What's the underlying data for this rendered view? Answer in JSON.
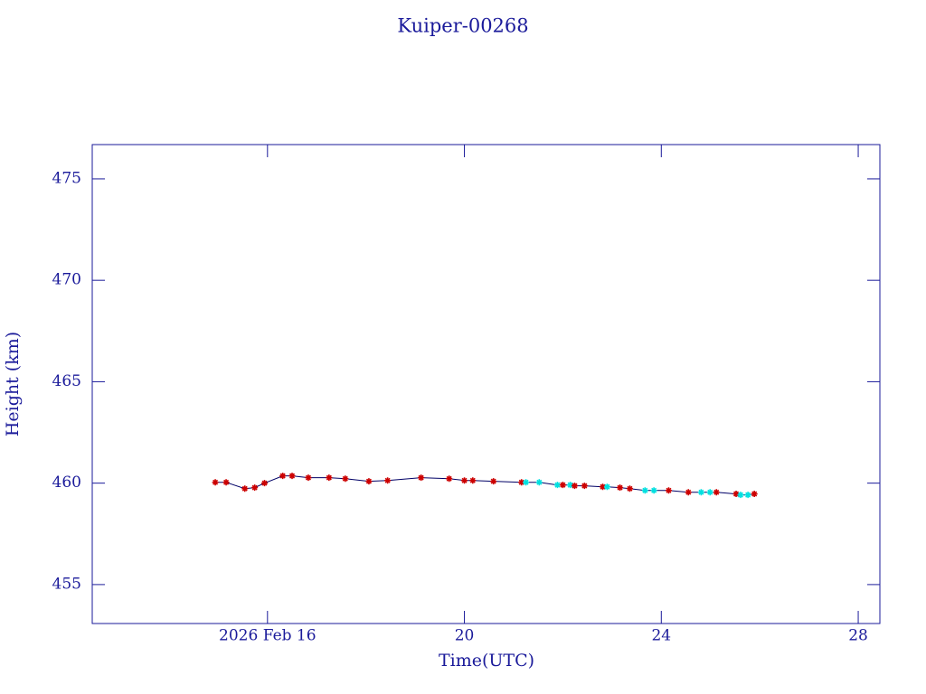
{
  "chart_data": {
    "type": "line",
    "title": "Kuiper-00268",
    "xlabel": "Time(UTC)",
    "ylabel": "Height (km)",
    "x": [
      14.94,
      15.16,
      15.54,
      15.74,
      15.94,
      16.31,
      16.5,
      16.83,
      17.25,
      17.58,
      18.06,
      18.44,
      19.12,
      19.69,
      20.0,
      20.17,
      20.59,
      21.16,
      21.25,
      21.52,
      21.89,
      22.0,
      22.15,
      22.24,
      22.44,
      22.81,
      22.9,
      23.16,
      23.36,
      23.67,
      23.85,
      24.15,
      24.55,
      24.81,
      24.99,
      25.12,
      25.52,
      25.61,
      25.76,
      25.89
    ],
    "values": [
      460.04,
      460.04,
      459.73,
      459.78,
      460.0,
      460.36,
      460.36,
      460.27,
      460.27,
      460.22,
      460.09,
      460.13,
      460.27,
      460.22,
      460.13,
      460.13,
      460.09,
      460.04,
      460.04,
      460.04,
      459.91,
      459.91,
      459.91,
      459.87,
      459.87,
      459.82,
      459.82,
      459.78,
      459.73,
      459.64,
      459.64,
      459.64,
      459.55,
      459.55,
      459.55,
      459.55,
      459.47,
      459.42,
      459.42,
      459.47
    ],
    "point_colors": [
      "#cc0000",
      "#cc0000",
      "#cc0000",
      "#cc0000",
      "#cc0000",
      "#cc0000",
      "#cc0000",
      "#cc0000",
      "#cc0000",
      "#cc0000",
      "#cc0000",
      "#cc0000",
      "#cc0000",
      "#cc0000",
      "#cc0000",
      "#cc0000",
      "#cc0000",
      "#cc0000",
      "#00e0e0",
      "#00e0e0",
      "#00e0e0",
      "#cc0000",
      "#00e0e0",
      "#cc0000",
      "#cc0000",
      "#cc0000",
      "#00e0e0",
      "#cc0000",
      "#cc0000",
      "#00e0e0",
      "#00e0e0",
      "#cc0000",
      "#cc0000",
      "#00e0e0",
      "#00e0e0",
      "#cc0000",
      "#cc0000",
      "#00e0e0",
      "#00e0e0",
      "#cc0000"
    ],
    "line_color": "#000066",
    "xlim": [
      12.44,
      28.44
    ],
    "xticks": [
      {
        "value": 16,
        "label": "2026 Feb 16"
      },
      20,
      24,
      28
    ],
    "ylim": [
      453.08,
      476.69
    ],
    "yticks": [
      455,
      460,
      465,
      470,
      475
    ]
  }
}
